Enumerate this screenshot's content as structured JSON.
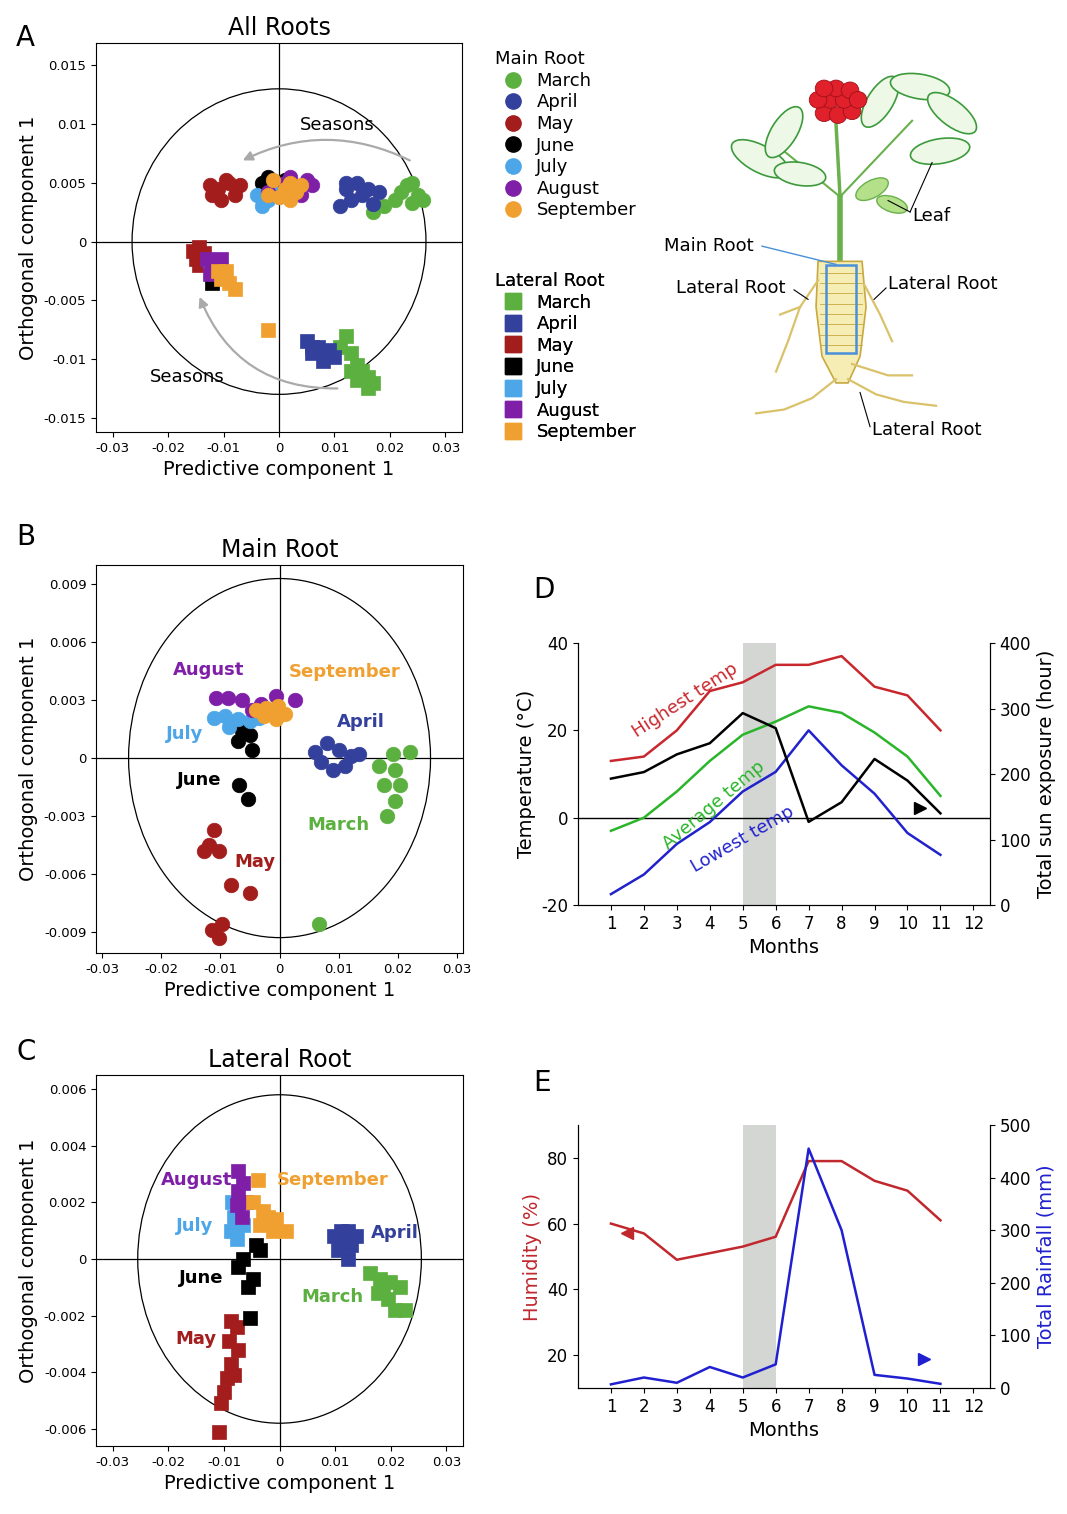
{
  "chart_data": [
    {
      "panel": "A",
      "type": "scatter",
      "title": "All Roots",
      "x_label": "Predictive component 1",
      "y_label": "Orthogonal component 1",
      "xlim": [
        -0.033,
        0.033
      ],
      "xticks": [
        -0.03,
        -0.02,
        -0.01,
        0,
        0.01,
        0.02,
        0.03
      ],
      "ylim": [
        -0.0162,
        0.0169
      ],
      "yticks": [
        -0.015,
        -0.01,
        -0.005,
        0,
        0.005,
        0.01,
        0.015
      ],
      "ellipse": {
        "center": [
          0,
          0
        ],
        "radii": [
          0.0265,
          0.013
        ]
      },
      "legend": "right",
      "annotations": [
        "Seasons",
        "Seasons"
      ],
      "groups": [
        {
          "name": "Main Root",
          "marker": "circle",
          "series": [
            {
              "name": "March",
              "color": "#5cb040",
              "x": [
                0.023,
                0.025,
                0.024,
                0.021,
                0.019,
                0.022,
                0.026,
                0.017,
                0.024
              ],
              "y": [
                0.0048,
                0.004,
                0.0033,
                0.0035,
                0.003,
                0.0042,
                0.0035,
                0.0025,
                0.005
              ]
            },
            {
              "name": "April",
              "color": "#33409c",
              "x": [
                0.012,
                0.014,
                0.016,
                0.013,
                0.011,
                0.015,
                0.018,
                0.012,
                0.017
              ],
              "y": [
                0.0045,
                0.005,
                0.0045,
                0.0035,
                0.003,
                0.004,
                0.0042,
                0.005,
                0.0032
              ]
            },
            {
              "name": "May",
              "color": "#a31d1d",
              "x": [
                -0.0125,
                -0.011,
                -0.009,
                -0.0105,
                -0.008,
                -0.007,
                -0.0095,
                -0.012
              ],
              "y": [
                0.0048,
                0.0045,
                0.005,
                0.0035,
                0.004,
                0.0048,
                0.0052,
                0.004
              ]
            },
            {
              "name": "June",
              "color": "#000000",
              "x": [
                -0.003,
                -0.002,
                -0.001,
                0.001
              ],
              "y": [
                0.005,
                0.0055,
                0.0045,
                0.0052
              ]
            },
            {
              "name": "July",
              "color": "#4da6e8",
              "x": [
                -0.003,
                -0.002,
                -0.004,
                0.0,
                -0.001
              ],
              "y": [
                0.003,
                0.0035,
                0.004,
                0.0038,
                0.0042
              ]
            },
            {
              "name": "August",
              "color": "#7f1fa8",
              "x": [
                0.005,
                0.003,
                0.001,
                -0.002,
                0.004,
                0.006,
                0.002
              ],
              "y": [
                0.0052,
                0.0045,
                0.005,
                0.0042,
                0.004,
                0.0048,
                0.0055
              ]
            },
            {
              "name": "September",
              "color": "#f0a030",
              "x": [
                0.001,
                0.002,
                -0.001,
                0.003,
                0.0,
                0.004,
                -0.002,
                0.002
              ],
              "y": [
                0.0045,
                0.005,
                0.0052,
                0.0042,
                0.0038,
                0.0048,
                0.004,
                0.0035
              ]
            }
          ]
        },
        {
          "name": "Lateral Root",
          "marker": "square",
          "series": [
            {
              "name": "March",
              "color": "#5cb040",
              "x": [
                0.012,
                0.011,
                0.013,
                0.014,
                0.015,
                0.016,
                0.017,
                0.014,
                0.016,
                0.013
              ],
              "y": [
                -0.008,
                -0.009,
                -0.0095,
                -0.0105,
                -0.011,
                -0.0115,
                -0.012,
                -0.0118,
                -0.0125,
                -0.011
              ]
            },
            {
              "name": "April",
              "color": "#33409c",
              "x": [
                0.005,
                0.007,
                0.008,
                0.006,
                0.009,
                0.008,
                0.01,
                0.006
              ],
              "y": [
                -0.0085,
                -0.009,
                -0.0095,
                -0.0095,
                -0.0092,
                -0.0102,
                -0.0098,
                -0.009
              ]
            },
            {
              "name": "May",
              "color": "#a31d1d",
              "x": [
                -0.0145,
                -0.0155,
                -0.014,
                -0.015,
                -0.0135,
                -0.0145
              ],
              "y": [
                -0.0005,
                -0.0008,
                -0.0012,
                -0.0015,
                -0.001,
                -0.002
              ]
            },
            {
              "name": "June",
              "color": "#000000",
              "x": [
                -0.012,
                -0.011,
                -0.0115
              ],
              "y": [
                -0.0035,
                -0.003,
                -0.0025
              ]
            },
            {
              "name": "July",
              "color": "#4da6e8",
              "x": [
                -0.012,
                -0.011,
                -0.0125
              ],
              "y": [
                -0.002,
                -0.0025,
                -0.0018
              ]
            },
            {
              "name": "August",
              "color": "#7f1fa8",
              "x": [
                -0.013,
                -0.012,
                -0.011,
                -0.0125,
                -0.0105
              ],
              "y": [
                -0.0015,
                -0.0022,
                -0.002,
                -0.0028,
                -0.0015
              ]
            },
            {
              "name": "September",
              "color": "#f0a030",
              "x": [
                -0.011,
                -0.01,
                -0.009,
                -0.0095,
                -0.008,
                -0.0105,
                -0.002
              ],
              "y": [
                -0.0025,
                -0.003,
                -0.0035,
                -0.0025,
                -0.004,
                -0.0032,
                -0.0075
              ]
            }
          ]
        }
      ]
    },
    {
      "panel": "B",
      "type": "scatter",
      "title": "Main Root",
      "marker": "circle",
      "x_label": "Predictive component 1",
      "y_label": "Orthogonal component 1",
      "xlim": [
        -0.031,
        0.031
      ],
      "xticks": [
        -0.03,
        -0.02,
        -0.01,
        0,
        0.01,
        0.02,
        0.03
      ],
      "ylim": [
        -0.0101,
        0.01
      ],
      "yticks": [
        -0.009,
        -0.006,
        -0.003,
        0,
        0.003,
        0.006,
        0.009
      ],
      "ellipse": {
        "center": [
          0,
          0
        ],
        "radii": [
          0.0255,
          0.0093
        ]
      },
      "series": [
        {
          "name": "March",
          "color": "#5cb040",
          "x": [
            0.022,
            0.0195,
            0.0176,
            0.0195,
            0.0182,
            0.0203,
            0.0168,
            0.0192,
            0.0066
          ],
          "y": [
            0.0003,
            -0.0006,
            -0.0014,
            -0.0022,
            -0.003,
            -0.0014,
            -0.0004,
            0.0002,
            -0.0086
          ]
        },
        {
          "name": "April",
          "color": "#33409c",
          "x": [
            0.006,
            0.008,
            0.01,
            0.007,
            0.009,
            0.012,
            0.011,
            0.0135
          ],
          "y": [
            0.0003,
            0.0008,
            0.0004,
            -0.0002,
            -0.0006,
            0.0001,
            -0.0004,
            0.0002
          ]
        },
        {
          "name": "May",
          "color": "#a31d1d",
          "x": [
            -0.0111,
            -0.0119,
            -0.0103,
            -0.0127,
            -0.0082,
            -0.005,
            -0.0098,
            -0.0103,
            -0.0114
          ],
          "y": [
            -0.0037,
            -0.0045,
            -0.0048,
            -0.0048,
            -0.0066,
            -0.007,
            -0.0086,
            -0.0093,
            -0.0089
          ]
        },
        {
          "name": "June",
          "color": "#000000",
          "x": [
            -0.0071,
            -0.005,
            -0.0047,
            -0.0069,
            -0.0053,
            -0.0063
          ],
          "y": [
            0.0009,
            0.0012,
            0.0004,
            -0.0014,
            -0.0021,
            0.0014
          ]
        },
        {
          "name": "July",
          "color": "#4da6e8",
          "x": [
            -0.0111,
            -0.0092,
            -0.0071,
            -0.0034,
            -0.0085,
            -0.005
          ],
          "y": [
            0.0021,
            0.0022,
            0.002,
            0.0021,
            0.0016,
            0.0019
          ]
        },
        {
          "name": "August",
          "color": "#7f1fa8",
          "x": [
            -0.0108,
            -0.0087,
            -0.0063,
            -0.0031,
            -0.0006,
            0.0026,
            -0.0047
          ],
          "y": [
            0.0031,
            0.0031,
            0.003,
            0.0028,
            0.0032,
            0.003,
            0.0025
          ]
        },
        {
          "name": "September",
          "color": "#f0a030",
          "x": [
            -0.0023,
            -0.0015,
            -0.0002,
            -0.0039,
            0.001,
            -0.0027,
            -0.0006
          ],
          "y": [
            0.0026,
            0.0024,
            0.0027,
            0.0025,
            0.0023,
            0.0022,
            0.002
          ]
        }
      ]
    },
    {
      "panel": "C",
      "type": "scatter",
      "title": "Lateral Root",
      "marker": "square",
      "x_label": "Predictive component 1",
      "y_label": "Orthogonal component 1",
      "xlim": [
        -0.033,
        0.033
      ],
      "xticks": [
        -0.03,
        -0.02,
        -0.01,
        0,
        0.01,
        0.02,
        0.03
      ],
      "ylim": [
        -0.0066,
        0.0065
      ],
      "yticks": [
        -0.006,
        -0.004,
        -0.002,
        0,
        0.002,
        0.004,
        0.006
      ],
      "ellipse": {
        "center": [
          0,
          0
        ],
        "radii": [
          0.0255,
          0.0058
        ]
      },
      "series": [
        {
          "name": "March",
          "color": "#5cb040",
          "x": [
            0.0163,
            0.0181,
            0.0198,
            0.0216,
            0.0177,
            0.0195,
            0.0207,
            0.0225,
            0.0186
          ],
          "y": [
            -0.0005,
            -0.0007,
            -0.0008,
            -0.001,
            -0.0012,
            -0.0014,
            -0.0018,
            -0.0018,
            -0.001
          ]
        },
        {
          "name": "April",
          "color": "#33409c",
          "x": [
            0.0098,
            0.0111,
            0.0123,
            0.0137,
            0.0111,
            0.0128,
            0.0123,
            0.0105
          ],
          "y": [
            0.0008,
            0.001,
            0.001,
            0.0008,
            0.0006,
            0.0005,
            0.0,
            0.0003
          ]
        },
        {
          "name": "May",
          "color": "#a31d1d",
          "x": [
            -0.0088,
            -0.0077,
            -0.0091,
            -0.0074,
            -0.0088,
            -0.0095,
            -0.01,
            -0.0105,
            -0.0109,
            -0.0082
          ],
          "y": [
            -0.0022,
            -0.0024,
            -0.0029,
            -0.0032,
            -0.0037,
            -0.0042,
            -0.0047,
            -0.0051,
            -0.0061,
            -0.0041
          ]
        },
        {
          "name": "June",
          "color": "#000000",
          "x": [
            -0.0065,
            -0.0042,
            -0.0074,
            -0.0047,
            -0.0056,
            -0.0053,
            -0.0035
          ],
          "y": [
            0.0,
            0.0005,
            -0.0003,
            -0.0007,
            -0.001,
            -0.0021,
            0.0003
          ]
        },
        {
          "name": "July",
          "color": "#4da6e8",
          "x": [
            -0.0082,
            -0.0088,
            -0.0077,
            -0.0086,
            -0.0065,
            -0.0074
          ],
          "y": [
            0.0015,
            0.001,
            0.0007,
            0.002,
            0.0012,
            0.0017
          ]
        },
        {
          "name": "August",
          "color": "#7f1fa8",
          "x": [
            -0.0074,
            -0.0065,
            -0.0074,
            -0.006,
            -0.0077,
            -0.0067
          ],
          "y": [
            0.0031,
            0.0027,
            0.0024,
            0.002,
            0.0019,
            0.0015
          ]
        },
        {
          "name": "September",
          "color": "#f0a030",
          "x": [
            -0.0039,
            -0.0047,
            -0.003,
            -0.0021,
            -0.0007,
            0.0011,
            -0.0035,
            -0.0012
          ],
          "y": [
            0.0028,
            0.002,
            0.0017,
            0.0015,
            0.0014,
            0.001,
            0.0012,
            0.001
          ]
        }
      ]
    },
    {
      "panel": "D",
      "type": "line",
      "x_label": "Months",
      "y_label": "Temperature (°C)",
      "y2_label": "Total sun exposure (hour)",
      "x": [
        1,
        2,
        3,
        4,
        5,
        6,
        7,
        8,
        9,
        10,
        11
      ],
      "xlim": [
        0,
        12.5
      ],
      "xticks": [
        1,
        2,
        3,
        4,
        5,
        6,
        7,
        8,
        9,
        10,
        11,
        12
      ],
      "ylim": [
        -20,
        40
      ],
      "yticks": [
        -20,
        0,
        20,
        40
      ],
      "y2lim": [
        0,
        400
      ],
      "y2ticks": [
        0,
        100,
        200,
        300,
        400
      ],
      "shaded_x": [
        5,
        6
      ],
      "series": [
        {
          "name": "Highest temp",
          "color": "#c8282d",
          "values": [
            13,
            14,
            20,
            29,
            31,
            35,
            35,
            37,
            30,
            28,
            20
          ]
        },
        {
          "name": "Average temp",
          "color": "#2bb52b",
          "values": [
            -3,
            0,
            6,
            13,
            19,
            22,
            25.5,
            24,
            19.5,
            14,
            5
          ]
        },
        {
          "name": "Lowest temp",
          "color": "#2222cc",
          "values": [
            -17.5,
            -13,
            -6,
            -1,
            6,
            10.5,
            20,
            12,
            5.5,
            -3.5,
            -8.5
          ]
        },
        {
          "color": "#000000",
          "axis": "y2",
          "values": [
            193,
            203,
            230,
            247,
            293,
            270,
            127,
            157,
            223,
            190,
            140
          ]
        }
      ]
    },
    {
      "panel": "E",
      "type": "line",
      "x_label": "Months",
      "y_label": "Humidity (%)",
      "y2_label": "Total Rainfall (mm)",
      "x": [
        1,
        2,
        3,
        4,
        5,
        6,
        7,
        8,
        9,
        10,
        11
      ],
      "xlim": [
        0,
        12.5
      ],
      "xticks": [
        1,
        2,
        3,
        4,
        5,
        6,
        7,
        8,
        9,
        10,
        11,
        12
      ],
      "ylim": [
        10,
        90
      ],
      "yticks": [
        20,
        40,
        60,
        80
      ],
      "y2lim": [
        0,
        500
      ],
      "y2ticks": [
        0,
        100,
        200,
        300,
        400,
        500
      ],
      "shaded_x": [
        5,
        6
      ],
      "series": [
        {
          "color": "#c0282d",
          "values": [
            60,
            57,
            49,
            51,
            53,
            56,
            79,
            79,
            73,
            70,
            61
          ]
        },
        {
          "color": "#2020d0",
          "axis": "y2",
          "values": [
            7,
            20,
            10,
            40,
            20,
            45,
            455,
            300,
            25,
            18,
            8
          ]
        }
      ]
    }
  ],
  "diagram": {
    "labels": {
      "leaf": "Leaf",
      "main_root": "Main Root",
      "lateral_roots": [
        "Lateral Root",
        "Lateral Root",
        "Lateral Root"
      ]
    }
  }
}
